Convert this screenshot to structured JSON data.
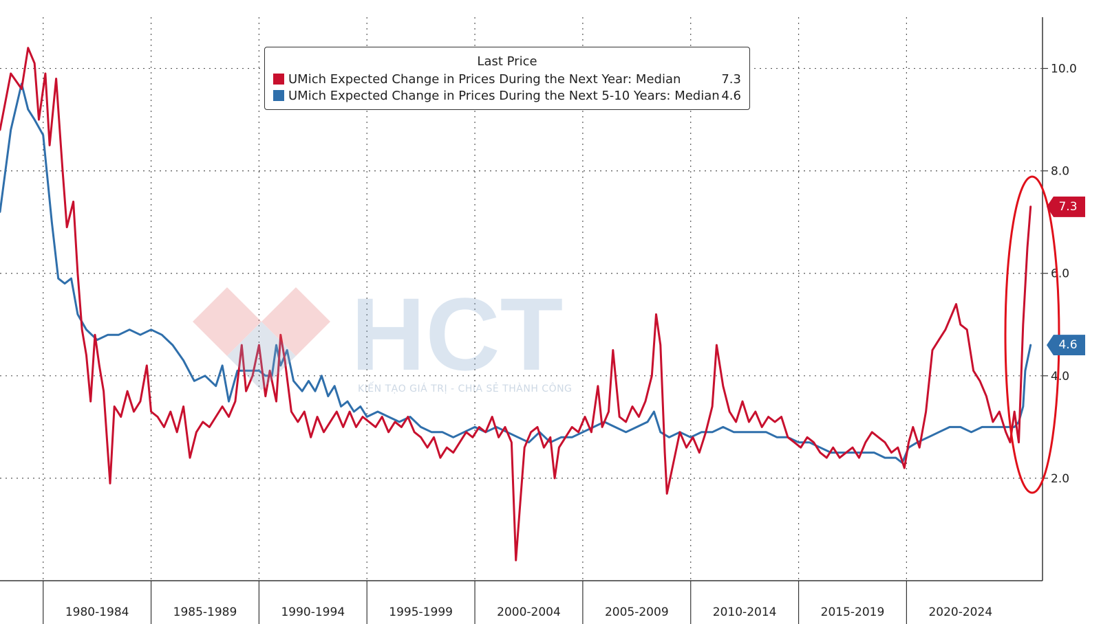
{
  "chart_data": {
    "type": "line",
    "ylim": [
      0,
      11
    ],
    "y_ticks": [
      2.0,
      4.0,
      6.0,
      8.0,
      10.0
    ],
    "y_tick_labels": [
      "2.0",
      "4.0",
      "6.0",
      "8.0",
      "10.0"
    ],
    "x_ticks": [
      "1980-1984",
      "1985-1989",
      "1990-1994",
      "1995-1999",
      "2000-2004",
      "2005-2009",
      "2010-2014",
      "2015-2019",
      "2020-2024"
    ],
    "grid": true,
    "legend_position": "top-center",
    "legend_title": "Last Price",
    "series": [
      {
        "name": "UMich Expected Change in Prices During the Next Year: Median",
        "last_value": "7.3",
        "color": "#c8102e",
        "points": [
          [
            1978.0,
            8.8
          ],
          [
            1978.5,
            9.9
          ],
          [
            1979.0,
            9.6
          ],
          [
            1979.3,
            10.4
          ],
          [
            1979.6,
            10.1
          ],
          [
            1979.8,
            9.0
          ],
          [
            1980.1,
            9.9
          ],
          [
            1980.3,
            8.5
          ],
          [
            1980.6,
            9.8
          ],
          [
            1980.9,
            8.0
          ],
          [
            1981.1,
            6.9
          ],
          [
            1981.4,
            7.4
          ],
          [
            1981.6,
            6.0
          ],
          [
            1981.8,
            4.9
          ],
          [
            1982.0,
            4.4
          ],
          [
            1982.2,
            3.5
          ],
          [
            1982.4,
            4.8
          ],
          [
            1982.6,
            4.2
          ],
          [
            1982.8,
            3.7
          ],
          [
            1983.0,
            2.5
          ],
          [
            1983.1,
            1.9
          ],
          [
            1983.3,
            3.4
          ],
          [
            1983.6,
            3.2
          ],
          [
            1983.9,
            3.7
          ],
          [
            1984.2,
            3.3
          ],
          [
            1984.5,
            3.5
          ],
          [
            1984.8,
            4.2
          ],
          [
            1985.0,
            3.3
          ],
          [
            1985.3,
            3.2
          ],
          [
            1985.6,
            3.0
          ],
          [
            1985.9,
            3.3
          ],
          [
            1986.2,
            2.9
          ],
          [
            1986.5,
            3.4
          ],
          [
            1986.8,
            2.4
          ],
          [
            1987.1,
            2.9
          ],
          [
            1987.4,
            3.1
          ],
          [
            1987.7,
            3.0
          ],
          [
            1988.0,
            3.2
          ],
          [
            1988.3,
            3.4
          ],
          [
            1988.6,
            3.2
          ],
          [
            1988.9,
            3.5
          ],
          [
            1989.2,
            4.6
          ],
          [
            1989.4,
            3.7
          ],
          [
            1989.7,
            4.0
          ],
          [
            1990.0,
            4.6
          ],
          [
            1990.3,
            3.6
          ],
          [
            1990.5,
            4.1
          ],
          [
            1990.8,
            3.5
          ],
          [
            1991.0,
            4.8
          ],
          [
            1991.2,
            4.3
          ],
          [
            1991.5,
            3.3
          ],
          [
            1991.8,
            3.1
          ],
          [
            1992.1,
            3.3
          ],
          [
            1992.4,
            2.8
          ],
          [
            1992.7,
            3.2
          ],
          [
            1993.0,
            2.9
          ],
          [
            1993.3,
            3.1
          ],
          [
            1993.6,
            3.3
          ],
          [
            1993.9,
            3.0
          ],
          [
            1994.2,
            3.3
          ],
          [
            1994.5,
            3.0
          ],
          [
            1994.8,
            3.2
          ],
          [
            1995.1,
            3.1
          ],
          [
            1995.4,
            3.0
          ],
          [
            1995.7,
            3.2
          ],
          [
            1996.0,
            2.9
          ],
          [
            1996.3,
            3.1
          ],
          [
            1996.6,
            3.0
          ],
          [
            1996.9,
            3.2
          ],
          [
            1997.2,
            2.9
          ],
          [
            1997.5,
            2.8
          ],
          [
            1997.8,
            2.6
          ],
          [
            1998.1,
            2.8
          ],
          [
            1998.4,
            2.4
          ],
          [
            1998.7,
            2.6
          ],
          [
            1999.0,
            2.5
          ],
          [
            1999.3,
            2.7
          ],
          [
            1999.6,
            2.9
          ],
          [
            1999.9,
            2.8
          ],
          [
            2000.2,
            3.0
          ],
          [
            2000.5,
            2.9
          ],
          [
            2000.8,
            3.2
          ],
          [
            2001.1,
            2.8
          ],
          [
            2001.4,
            3.0
          ],
          [
            2001.7,
            2.7
          ],
          [
            2001.9,
            0.4
          ],
          [
            2002.1,
            1.5
          ],
          [
            2002.3,
            2.6
          ],
          [
            2002.6,
            2.9
          ],
          [
            2002.9,
            3.0
          ],
          [
            2003.2,
            2.6
          ],
          [
            2003.5,
            2.8
          ],
          [
            2003.7,
            2.0
          ],
          [
            2003.9,
            2.6
          ],
          [
            2004.2,
            2.8
          ],
          [
            2004.5,
            3.0
          ],
          [
            2004.8,
            2.9
          ],
          [
            2005.1,
            3.2
          ],
          [
            2005.4,
            2.9
          ],
          [
            2005.7,
            3.8
          ],
          [
            2005.9,
            3.0
          ],
          [
            2006.2,
            3.3
          ],
          [
            2006.4,
            4.5
          ],
          [
            2006.7,
            3.2
          ],
          [
            2007.0,
            3.1
          ],
          [
            2007.3,
            3.4
          ],
          [
            2007.6,
            3.2
          ],
          [
            2007.9,
            3.5
          ],
          [
            2008.2,
            4.0
          ],
          [
            2008.4,
            5.2
          ],
          [
            2008.6,
            4.6
          ],
          [
            2008.8,
            2.5
          ],
          [
            2008.9,
            1.7
          ],
          [
            2009.2,
            2.3
          ],
          [
            2009.5,
            2.9
          ],
          [
            2009.8,
            2.6
          ],
          [
            2010.1,
            2.8
          ],
          [
            2010.4,
            2.5
          ],
          [
            2010.7,
            2.9
          ],
          [
            2011.0,
            3.4
          ],
          [
            2011.2,
            4.6
          ],
          [
            2011.5,
            3.8
          ],
          [
            2011.8,
            3.3
          ],
          [
            2012.1,
            3.1
          ],
          [
            2012.4,
            3.5
          ],
          [
            2012.7,
            3.1
          ],
          [
            2013.0,
            3.3
          ],
          [
            2013.3,
            3.0
          ],
          [
            2013.6,
            3.2
          ],
          [
            2013.9,
            3.1
          ],
          [
            2014.2,
            3.2
          ],
          [
            2014.5,
            2.8
          ],
          [
            2014.8,
            2.7
          ],
          [
            2015.1,
            2.6
          ],
          [
            2015.4,
            2.8
          ],
          [
            2015.7,
            2.7
          ],
          [
            2016.0,
            2.5
          ],
          [
            2016.3,
            2.4
          ],
          [
            2016.6,
            2.6
          ],
          [
            2016.9,
            2.4
          ],
          [
            2017.2,
            2.5
          ],
          [
            2017.5,
            2.6
          ],
          [
            2017.8,
            2.4
          ],
          [
            2018.1,
            2.7
          ],
          [
            2018.4,
            2.9
          ],
          [
            2018.7,
            2.8
          ],
          [
            2019.0,
            2.7
          ],
          [
            2019.3,
            2.5
          ],
          [
            2019.6,
            2.6
          ],
          [
            2019.9,
            2.2
          ],
          [
            2020.1,
            2.7
          ],
          [
            2020.3,
            3.0
          ],
          [
            2020.6,
            2.6
          ],
          [
            2020.9,
            3.3
          ],
          [
            2021.2,
            4.5
          ],
          [
            2021.5,
            4.7
          ],
          [
            2021.8,
            4.9
          ],
          [
            2022.1,
            5.2
          ],
          [
            2022.3,
            5.4
          ],
          [
            2022.5,
            5.0
          ],
          [
            2022.8,
            4.9
          ],
          [
            2023.1,
            4.1
          ],
          [
            2023.4,
            3.9
          ],
          [
            2023.7,
            3.6
          ],
          [
            2024.0,
            3.1
          ],
          [
            2024.3,
            3.3
          ],
          [
            2024.6,
            2.9
          ],
          [
            2024.8,
            2.7
          ],
          [
            2025.0,
            3.3
          ],
          [
            2025.2,
            2.7
          ],
          [
            2025.4,
            5.0
          ],
          [
            2025.6,
            6.5
          ],
          [
            2025.75,
            7.3
          ]
        ]
      },
      {
        "name": "UMich Expected Change in Prices During the Next 5-10 Years: Median",
        "last_value": "4.6",
        "color": "#2f6fab",
        "points": [
          [
            1978.0,
            7.2
          ],
          [
            1978.5,
            8.8
          ],
          [
            1979.0,
            9.7
          ],
          [
            1979.3,
            9.2
          ],
          [
            1979.6,
            9.0
          ],
          [
            1980.0,
            8.7
          ],
          [
            1980.4,
            7.0
          ],
          [
            1980.7,
            5.9
          ],
          [
            1981.0,
            5.8
          ],
          [
            1981.3,
            5.9
          ],
          [
            1981.6,
            5.2
          ],
          [
            1982.0,
            4.9
          ],
          [
            1982.5,
            4.7
          ],
          [
            1983.0,
            4.8
          ],
          [
            1983.5,
            4.8
          ],
          [
            1984.0,
            4.9
          ],
          [
            1984.5,
            4.8
          ],
          [
            1985.0,
            4.9
          ],
          [
            1985.5,
            4.8
          ],
          [
            1986.0,
            4.6
          ],
          [
            1986.5,
            4.3
          ],
          [
            1987.0,
            3.9
          ],
          [
            1987.5,
            4.0
          ],
          [
            1988.0,
            3.8
          ],
          [
            1988.3,
            4.2
          ],
          [
            1988.6,
            3.5
          ],
          [
            1989.0,
            4.1
          ],
          [
            1989.5,
            4.1
          ],
          [
            1990.0,
            4.1
          ],
          [
            1990.3,
            4.0
          ],
          [
            1990.6,
            4.0
          ],
          [
            1990.8,
            4.6
          ],
          [
            1991.0,
            4.2
          ],
          [
            1991.3,
            4.5
          ],
          [
            1991.6,
            3.9
          ],
          [
            1992.0,
            3.7
          ],
          [
            1992.3,
            3.9
          ],
          [
            1992.6,
            3.7
          ],
          [
            1992.9,
            4.0
          ],
          [
            1993.2,
            3.6
          ],
          [
            1993.5,
            3.8
          ],
          [
            1993.8,
            3.4
          ],
          [
            1994.1,
            3.5
          ],
          [
            1994.4,
            3.3
          ],
          [
            1994.7,
            3.4
          ],
          [
            1995.0,
            3.2
          ],
          [
            1995.5,
            3.3
          ],
          [
            1996.0,
            3.2
          ],
          [
            1996.5,
            3.1
          ],
          [
            1997.0,
            3.2
          ],
          [
            1997.5,
            3.0
          ],
          [
            1998.0,
            2.9
          ],
          [
            1998.5,
            2.9
          ],
          [
            1999.0,
            2.8
          ],
          [
            1999.5,
            2.9
          ],
          [
            2000.0,
            3.0
          ],
          [
            2000.5,
            2.9
          ],
          [
            2001.0,
            3.0
          ],
          [
            2001.5,
            2.9
          ],
          [
            2002.0,
            2.8
          ],
          [
            2002.5,
            2.7
          ],
          [
            2003.0,
            2.9
          ],
          [
            2003.5,
            2.7
          ],
          [
            2004.0,
            2.8
          ],
          [
            2004.5,
            2.8
          ],
          [
            2005.0,
            2.9
          ],
          [
            2005.5,
            3.0
          ],
          [
            2006.0,
            3.1
          ],
          [
            2006.5,
            3.0
          ],
          [
            2007.0,
            2.9
          ],
          [
            2007.5,
            3.0
          ],
          [
            2008.0,
            3.1
          ],
          [
            2008.3,
            3.3
          ],
          [
            2008.6,
            2.9
          ],
          [
            2009.0,
            2.8
          ],
          [
            2009.5,
            2.9
          ],
          [
            2010.0,
            2.8
          ],
          [
            2010.5,
            2.9
          ],
          [
            2011.0,
            2.9
          ],
          [
            2011.5,
            3.0
          ],
          [
            2012.0,
            2.9
          ],
          [
            2012.5,
            2.9
          ],
          [
            2013.0,
            2.9
          ],
          [
            2013.5,
            2.9
          ],
          [
            2014.0,
            2.8
          ],
          [
            2014.5,
            2.8
          ],
          [
            2015.0,
            2.7
          ],
          [
            2015.5,
            2.7
          ],
          [
            2016.0,
            2.6
          ],
          [
            2016.5,
            2.5
          ],
          [
            2017.0,
            2.5
          ],
          [
            2017.5,
            2.5
          ],
          [
            2018.0,
            2.5
          ],
          [
            2018.5,
            2.5
          ],
          [
            2019.0,
            2.4
          ],
          [
            2019.5,
            2.4
          ],
          [
            2019.8,
            2.3
          ],
          [
            2020.1,
            2.6
          ],
          [
            2020.5,
            2.7
          ],
          [
            2021.0,
            2.8
          ],
          [
            2021.5,
            2.9
          ],
          [
            2022.0,
            3.0
          ],
          [
            2022.5,
            3.0
          ],
          [
            2023.0,
            2.9
          ],
          [
            2023.5,
            3.0
          ],
          [
            2024.0,
            3.0
          ],
          [
            2024.5,
            3.0
          ],
          [
            2025.0,
            3.0
          ],
          [
            2025.2,
            3.1
          ],
          [
            2025.4,
            3.4
          ],
          [
            2025.5,
            4.1
          ],
          [
            2025.75,
            4.6
          ]
        ]
      }
    ]
  },
  "legend": {
    "title": "Last Price",
    "items": [
      {
        "name": "UMich Expected Change in Prices During the Next Year: Median",
        "value": "7.3"
      },
      {
        "name": "UMich Expected Change in Prices During the Next 5-10 Years: Median",
        "value": "4.6"
      }
    ]
  },
  "value_tags": {
    "red": "7.3",
    "blue": "4.6"
  },
  "watermark": {
    "text": "HCT",
    "tagline": "KIẾN TẠO GIÁ TRỊ - CHIA SẺ THÀNH CÔNG"
  },
  "colors": {
    "red": "#c8102e",
    "blue": "#2f6fab",
    "grid": "#555555",
    "highlight_ellipse": "#e0101a"
  }
}
